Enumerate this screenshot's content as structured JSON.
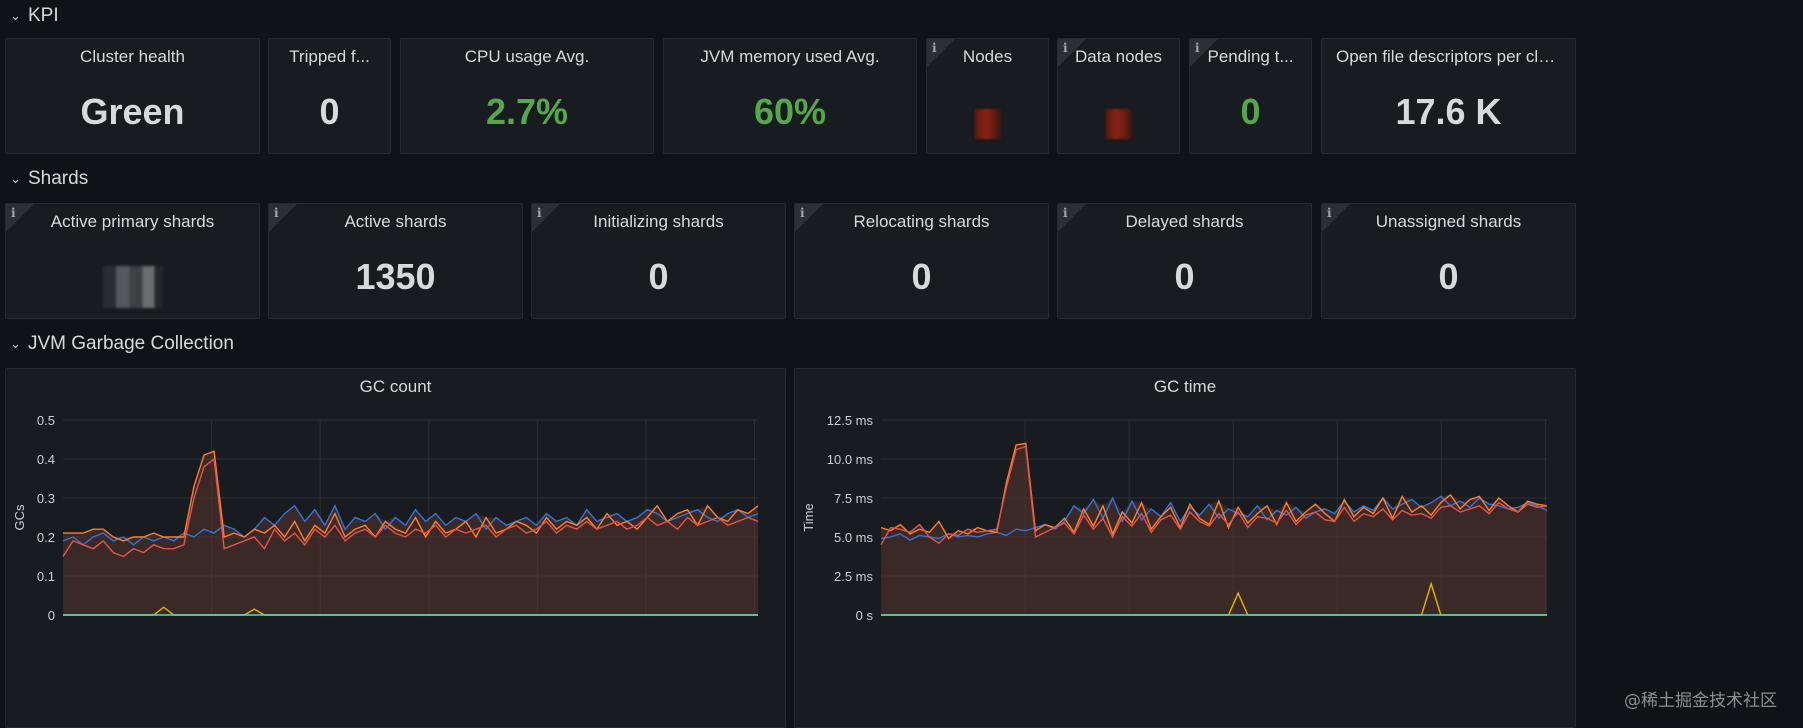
{
  "rows": {
    "kpi": "KPI",
    "shards": "Shards",
    "jvm": "JVM Garbage Collection"
  },
  "kpi_panels": [
    {
      "title": "Cluster health",
      "value": "Green"
    },
    {
      "title": "Tripped f...",
      "value": "0"
    },
    {
      "title": "CPU usage Avg.",
      "value": "2.7%"
    },
    {
      "title": "JVM memory used Avg.",
      "value": "60%"
    },
    {
      "title": "Nodes",
      "value": ""
    },
    {
      "title": "Data nodes",
      "value": ""
    },
    {
      "title": "Pending t...",
      "value": "0"
    },
    {
      "title": "Open file descriptors per clus...",
      "value": "17.6 K"
    }
  ],
  "shard_panels": [
    {
      "title": "Active primary shards",
      "value": ""
    },
    {
      "title": "Active shards",
      "value": "1350"
    },
    {
      "title": "Initializing shards",
      "value": "0"
    },
    {
      "title": "Relocating shards",
      "value": "0"
    },
    {
      "title": "Delayed shards",
      "value": "0"
    },
    {
      "title": "Unassigned shards",
      "value": "0"
    }
  ],
  "colors": {
    "green": "#56a64b",
    "blue": "#3274d9",
    "orange": "#ff7f2a",
    "red": "#e0554a",
    "yellow": "#e0b400",
    "teal": "#5fd3c4",
    "fill": "#3a2a2a"
  },
  "chart_data": [
    {
      "type": "line",
      "title": "GC count",
      "ylabel": "GCs",
      "xlabel": "",
      "ylim": [
        0,
        0.5
      ],
      "ytick_labels": [
        "0",
        "0.1",
        "0.2",
        "0.3",
        "0.4",
        "0.5"
      ],
      "grid": true,
      "series": [
        {
          "values": [
            0.19,
            0.2,
            0.18,
            0.2,
            0.21,
            0.19,
            0.2,
            0.18,
            0.2,
            0.19,
            0.2,
            0.19,
            0.21,
            0.2,
            0.22,
            0.21,
            0.23,
            0.22,
            0.2,
            0.22,
            0.25,
            0.23,
            0.26,
            0.28,
            0.24,
            0.27,
            0.23,
            0.28,
            0.22,
            0.25,
            0.24,
            0.26,
            0.22,
            0.25,
            0.23,
            0.27,
            0.24,
            0.26,
            0.23,
            0.25,
            0.24,
            0.26,
            0.22,
            0.25,
            0.23,
            0.24,
            0.25,
            0.23,
            0.26,
            0.24,
            0.25,
            0.23,
            0.27,
            0.24,
            0.25,
            0.26,
            0.24,
            0.25,
            0.27,
            0.26,
            0.24,
            0.25,
            0.26,
            0.27,
            0.25,
            0.24,
            0.26,
            0.27,
            0.25,
            0.26
          ]
        },
        {
          "values": [
            0.21,
            0.21,
            0.21,
            0.22,
            0.22,
            0.2,
            0.19,
            0.2,
            0.2,
            0.21,
            0.2,
            0.2,
            0.2,
            0.33,
            0.41,
            0.42,
            0.2,
            0.21,
            0.2,
            0.22,
            0.21,
            0.23,
            0.2,
            0.24,
            0.19,
            0.23,
            0.21,
            0.26,
            0.2,
            0.22,
            0.23,
            0.2,
            0.24,
            0.22,
            0.21,
            0.25,
            0.2,
            0.24,
            0.21,
            0.22,
            0.24,
            0.2,
            0.25,
            0.21,
            0.22,
            0.24,
            0.23,
            0.21,
            0.25,
            0.22,
            0.24,
            0.23,
            0.25,
            0.22,
            0.26,
            0.23,
            0.24,
            0.22,
            0.25,
            0.28,
            0.24,
            0.26,
            0.27,
            0.23,
            0.28,
            0.25,
            0.24,
            0.27,
            0.26,
            0.28
          ]
        },
        {
          "values": [
            0.15,
            0.19,
            0.18,
            0.17,
            0.19,
            0.16,
            0.15,
            0.17,
            0.16,
            0.18,
            0.17,
            0.17,
            0.18,
            0.3,
            0.38,
            0.4,
            0.17,
            0.18,
            0.19,
            0.2,
            0.17,
            0.22,
            0.19,
            0.21,
            0.18,
            0.22,
            0.2,
            0.23,
            0.19,
            0.21,
            0.22,
            0.2,
            0.23,
            0.21,
            0.2,
            0.22,
            0.21,
            0.23,
            0.2,
            0.22,
            0.21,
            0.22,
            0.23,
            0.2,
            0.22,
            0.23,
            0.21,
            0.22,
            0.24,
            0.21,
            0.23,
            0.22,
            0.24,
            0.22,
            0.23,
            0.24,
            0.22,
            0.23,
            0.25,
            0.23,
            0.24,
            0.22,
            0.25,
            0.23,
            0.24,
            0.25,
            0.23,
            0.24,
            0.25,
            0.24
          ]
        },
        {
          "values": [
            0,
            0,
            0,
            0,
            0,
            0,
            0,
            0,
            0,
            0,
            0.02,
            0,
            0,
            0,
            0,
            0,
            0,
            0,
            0,
            0.015,
            0,
            0,
            0,
            0,
            0,
            0,
            0,
            0,
            0,
            0,
            0,
            0,
            0,
            0,
            0,
            0,
            0,
            0,
            0,
            0,
            0,
            0,
            0,
            0,
            0,
            0,
            0,
            0,
            0,
            0,
            0,
            0,
            0,
            0,
            0,
            0,
            0,
            0,
            0,
            0,
            0,
            0,
            0,
            0,
            0,
            0,
            0,
            0,
            0,
            0
          ]
        }
      ]
    },
    {
      "type": "line",
      "title": "GC time",
      "ylabel": "Time",
      "xlabel": "",
      "ylim": [
        0,
        12.5
      ],
      "ytick_labels": [
        "0 s",
        "2.5 ms",
        "5.0 ms",
        "7.5 ms",
        "10.0 ms",
        "12.5 ms"
      ],
      "grid": true,
      "series": [
        {
          "values": [
            4.9,
            5.0,
            5.2,
            4.8,
            5.1,
            5.0,
            4.9,
            5.2,
            5.0,
            5.1,
            5.0,
            5.2,
            5.3,
            5.1,
            5.5,
            5.4,
            5.6,
            5.8,
            5.5,
            6.0,
            7.0,
            6.5,
            7.4,
            6.2,
            7.5,
            6.0,
            7.3,
            6.1,
            6.8,
            6.3,
            7.2,
            6.0,
            6.9,
            6.4,
            7.1,
            6.2,
            6.8,
            6.5,
            6.3,
            7.0,
            6.1,
            6.7,
            6.4,
            6.9,
            6.2,
            6.6,
            6.8,
            6.5,
            7.3,
            6.6,
            7.0,
            6.7,
            7.5,
            6.8,
            7.1,
            7.4,
            6.9,
            7.2,
            7.6,
            7.0,
            7.3,
            6.9,
            7.5,
            7.1,
            7.0,
            6.8,
            6.9,
            7.2,
            7.0,
            6.7
          ]
        },
        {
          "values": [
            5.6,
            5.4,
            5.8,
            5.2,
            5.5,
            5.3,
            6.0,
            4.9,
            5.4,
            5.2,
            5.6,
            5.4,
            5.3,
            8.5,
            10.9,
            11.0,
            5.4,
            5.8,
            5.6,
            6.2,
            5.3,
            6.8,
            5.7,
            7.0,
            5.2,
            6.6,
            5.9,
            7.2,
            5.5,
            6.3,
            6.9,
            5.6,
            7.1,
            6.2,
            5.8,
            7.3,
            5.6,
            6.9,
            5.9,
            6.5,
            7.0,
            5.8,
            7.2,
            6.0,
            6.6,
            7.1,
            6.5,
            6.0,
            7.4,
            6.3,
            6.9,
            6.5,
            7.5,
            6.2,
            7.6,
            6.6,
            7.0,
            6.4,
            7.2,
            7.7,
            6.8,
            7.4,
            7.6,
            6.7,
            7.5,
            7.0,
            6.6,
            7.3,
            7.1,
            7.0
          ]
        },
        {
          "values": [
            4.5,
            5.6,
            5.5,
            5.3,
            5.8,
            5.0,
            4.6,
            5.2,
            5.1,
            5.5,
            5.3,
            5.4,
            5.5,
            8.2,
            10.6,
            10.8,
            5.0,
            5.3,
            5.6,
            5.9,
            5.2,
            6.4,
            5.5,
            6.2,
            5.0,
            6.3,
            5.7,
            6.5,
            5.3,
            6.1,
            6.4,
            5.5,
            6.6,
            6.0,
            5.7,
            6.5,
            5.8,
            6.6,
            5.6,
            6.3,
            6.2,
            5.9,
            6.7,
            5.8,
            6.4,
            6.6,
            6.1,
            6.0,
            6.9,
            6.0,
            6.5,
            6.3,
            6.8,
            6.1,
            6.7,
            6.4,
            6.5,
            6.2,
            6.9,
            7.0,
            6.6,
            6.8,
            7.0,
            6.5,
            7.2,
            6.8,
            6.6,
            7.1,
            6.9,
            7.0
          ]
        },
        {
          "values": [
            0,
            0,
            0,
            0,
            0,
            0,
            0,
            0,
            0,
            0,
            0,
            0,
            0,
            0,
            0,
            0,
            0,
            0,
            0,
            0,
            0,
            0,
            0,
            0,
            0,
            0,
            0,
            0,
            0,
            0,
            0,
            0,
            0,
            0,
            0,
            0,
            0,
            1.4,
            0,
            0,
            0,
            0,
            0,
            0,
            0,
            0,
            0,
            0,
            0,
            0,
            0,
            0,
            0,
            0,
            0,
            0,
            0,
            2.0,
            0,
            0,
            0,
            0,
            0,
            0,
            0,
            0,
            0,
            0,
            0,
            0
          ]
        }
      ]
    }
  ],
  "watermark": "@稀土掘金技术社区"
}
